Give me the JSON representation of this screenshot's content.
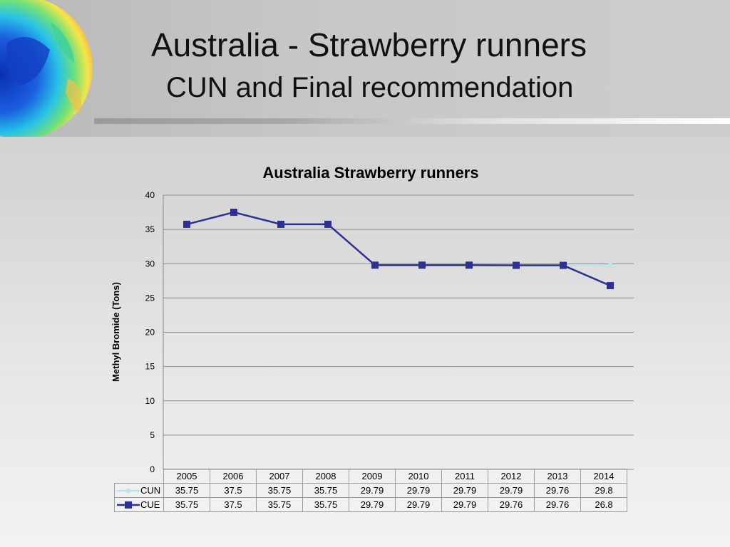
{
  "slide": {
    "title": "Australia - Strawberry runners",
    "subtitle": "CUN and Final recommendation"
  },
  "colors": {
    "cun": "#bfe3ea",
    "cue": "#2e3192",
    "grid": "#8c8c8c"
  },
  "chart_data": {
    "type": "line",
    "title": "Australia Strawberry runners",
    "ylabel": "Methyl Bromide (Tons)",
    "xlabel": "",
    "categories": [
      "2005",
      "2006",
      "2007",
      "2008",
      "2009",
      "2010",
      "2011",
      "2012",
      "2013",
      "2014"
    ],
    "ylim": [
      0,
      40
    ],
    "yticks": [
      0,
      5,
      10,
      15,
      20,
      25,
      30,
      35,
      40
    ],
    "grid": true,
    "legend": "data-table",
    "series": [
      {
        "name": "CUN",
        "values": [
          "35.75",
          "37.5",
          "35.75",
          "35.75",
          "29.79",
          "29.79",
          "29.79",
          "29.79",
          "29.76",
          "29.8"
        ],
        "marker": "circle",
        "color": "#bfe3ea"
      },
      {
        "name": "CUE",
        "values": [
          "35.75",
          "37.5",
          "35.75",
          "35.75",
          "29.79",
          "29.79",
          "29.79",
          "29.76",
          "29.76",
          "26.8"
        ],
        "marker": "square",
        "color": "#2e3192"
      }
    ]
  }
}
